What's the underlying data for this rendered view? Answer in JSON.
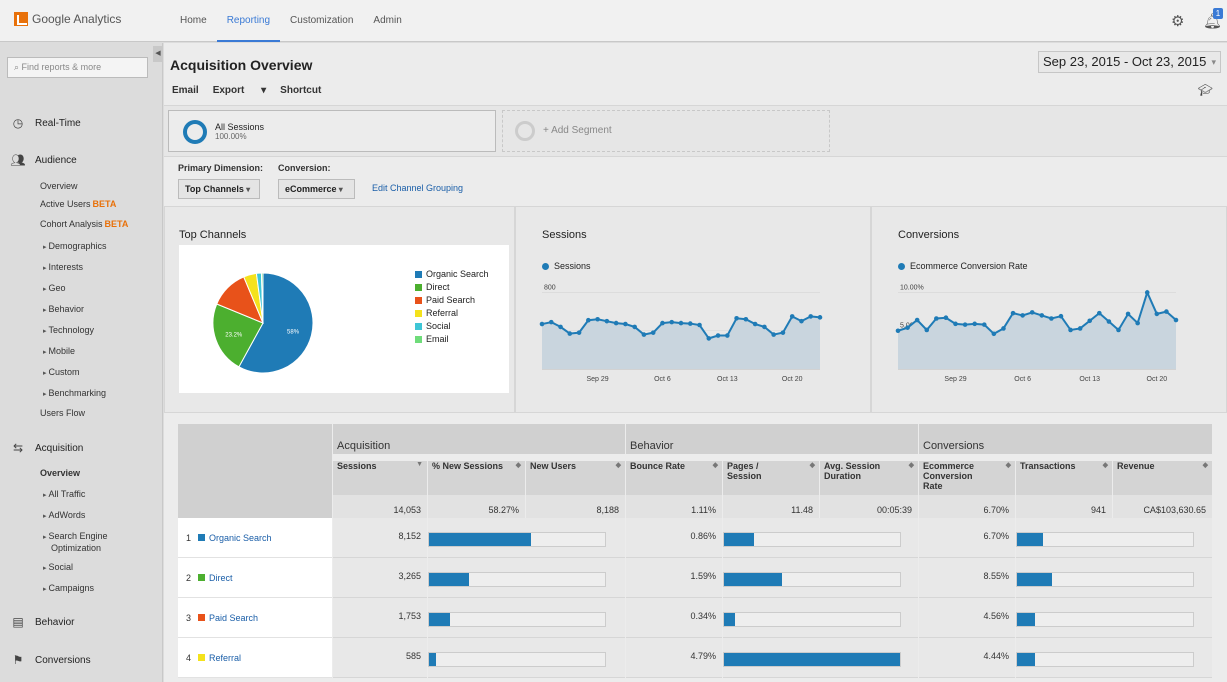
{
  "header": {
    "brand": "Google Analytics",
    "nav": [
      "Home",
      "Reporting",
      "Customization",
      "Admin"
    ],
    "active_nav": "Reporting",
    "notification_count": "1"
  },
  "sidebar": {
    "search_placeholder": "Find reports & more",
    "realtime": "Real-Time",
    "audience": "Audience",
    "audience_items": {
      "overview": "Overview",
      "active_users": "Active Users",
      "beta": "BETA",
      "cohort": "Cohort Analysis",
      "demographics": "Demographics",
      "interests": "Interests",
      "geo": "Geo",
      "behavior": "Behavior",
      "technology": "Technology",
      "mobile": "Mobile",
      "custom": "Custom",
      "benchmarking": "Benchmarking",
      "users_flow": "Users Flow"
    },
    "acquisition": "Acquisition",
    "acq_items": {
      "overview": "Overview",
      "all_traffic": "All Traffic",
      "adwords": "AdWords",
      "seo1": "Search Engine",
      "seo2": "Optimization",
      "social": "Social",
      "campaigns": "Campaigns"
    },
    "behavior": "Behavior",
    "conversions": "Conversions"
  },
  "page": {
    "title": "Acquisition Overview",
    "date_range": "Sep 23, 2015 - Oct 23, 2015",
    "toolbar": {
      "email": "Email",
      "export": "Export",
      "shortcut": "Shortcut"
    }
  },
  "segments": {
    "all_sessions": "All Sessions",
    "all_pct": "100.00%",
    "add": "+ Add Segment"
  },
  "dims": {
    "primary_label": "Primary Dimension:",
    "primary_value": "Top Channels",
    "conv_label": "Conversion:",
    "conv_value": "eCommerce",
    "edit_link": "Edit Channel Grouping"
  },
  "panels": {
    "top_channels": "Top Channels",
    "sessions": "Sessions",
    "conversions": "Conversions",
    "sessions_legend": "Sessions",
    "conv_legend": "Ecommerce Conversion Rate"
  },
  "colors": {
    "organic": "#1f7bb6",
    "direct": "#4caf2f",
    "paid": "#e8521a",
    "referral": "#f4e21c",
    "social": "#3ec6d6",
    "email": "#6fdc7a"
  },
  "chart_data": [
    {
      "type": "pie",
      "title": "Top Channels",
      "series": [
        {
          "name": "Organic Search",
          "value": 58,
          "label": "58%"
        },
        {
          "name": "Direct",
          "value": 23.2,
          "label": "23.2%"
        },
        {
          "name": "Paid Search",
          "value": 12.5
        },
        {
          "name": "Referral",
          "value": 4.2
        },
        {
          "name": "Social",
          "value": 1.6
        },
        {
          "name": "Email",
          "value": 0.5
        }
      ]
    },
    {
      "type": "area",
      "title": "Sessions",
      "series": [
        {
          "name": "Sessions",
          "values": [
            470,
            490,
            440,
            370,
            380,
            510,
            520,
            500,
            480,
            470,
            440,
            360,
            380,
            480,
            490,
            480,
            475,
            460,
            320,
            350,
            350,
            530,
            520,
            470,
            440,
            360,
            380,
            550,
            500,
            550,
            540
          ]
        }
      ],
      "ylim": [
        0,
        920
      ],
      "yticks": [
        400,
        800
      ],
      "xticks": [
        "Sep 29",
        "Oct 6",
        "Oct 13",
        "Oct 20"
      ]
    },
    {
      "type": "area",
      "title": "Conversions",
      "series": [
        {
          "name": "Ecommerce Conversion Rate",
          "values": [
            5.0,
            5.4,
            6.4,
            5.1,
            6.6,
            6.7,
            5.9,
            5.8,
            5.9,
            5.8,
            4.6,
            5.3,
            7.3,
            7.0,
            7.4,
            7.0,
            6.6,
            6.9,
            5.1,
            5.3,
            6.3,
            7.3,
            6.2,
            5.1,
            7.2,
            6.0,
            10.0,
            7.2,
            7.5,
            6.4
          ]
        }
      ],
      "ylim": [
        0,
        11.5
      ],
      "yticks": [
        "5.00%",
        "10.00%"
      ],
      "xticks": [
        "Sep 29",
        "Oct 6",
        "Oct 13",
        "Oct 20"
      ]
    }
  ],
  "table": {
    "groups": {
      "acquisition": "Acquisition",
      "behavior": "Behavior",
      "conversions": "Conversions"
    },
    "cols": {
      "sessions": "Sessions",
      "new_pct": "% New Sessions",
      "new_users": "New Users",
      "bounce": "Bounce Rate",
      "pages1": "Pages /",
      "pages2": "Session",
      "dur1": "Avg. Session",
      "dur2": "Duration",
      "ecr1": "Ecommerce",
      "ecr2": "Conversion",
      "ecr3": "Rate",
      "trans": "Transactions",
      "rev": "Revenue"
    },
    "totals": {
      "sessions": "14,053",
      "new_pct": "58.27%",
      "new_users": "8,188",
      "bounce": "1.11%",
      "pages": "11.48",
      "dur": "00:05:39",
      "ecr": "6.70%",
      "trans": "941",
      "rev": "CA$103,630.65"
    },
    "rows": [
      {
        "n": "1",
        "name": "Organic Search",
        "sessions": "8,152",
        "bounce": "0.86%",
        "ecr": "6.70%",
        "new_frac": 0.58,
        "pages_frac": 0.17,
        "trans_frac": 0.15
      },
      {
        "n": "2",
        "name": "Direct",
        "sessions": "3,265",
        "bounce": "1.59%",
        "ecr": "8.55%",
        "new_frac": 0.23,
        "pages_frac": 0.33,
        "trans_frac": 0.2
      },
      {
        "n": "3",
        "name": "Paid Search",
        "sessions": "1,753",
        "bounce": "0.34%",
        "ecr": "4.56%",
        "new_frac": 0.12,
        "pages_frac": 0.06,
        "trans_frac": 0.1
      },
      {
        "n": "4",
        "name": "Referral",
        "sessions": "585",
        "bounce": "4.79%",
        "ecr": "4.44%",
        "new_frac": 0.04,
        "pages_frac": 1.0,
        "trans_frac": 0.1
      }
    ]
  }
}
